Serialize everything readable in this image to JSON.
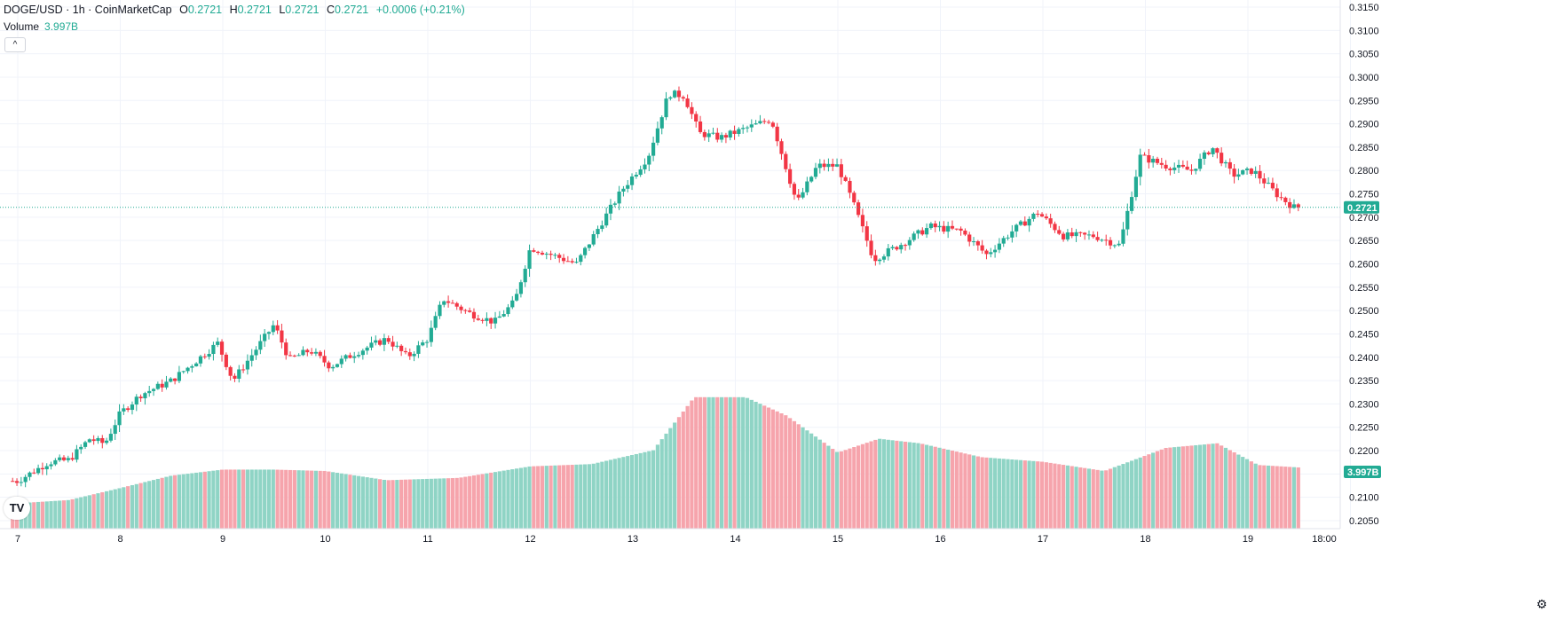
{
  "legend": {
    "symbol": "DOGE/USD · 1h · CoinMarketCap",
    "o_label": "O",
    "o_value": "0.2721",
    "h_label": "H",
    "h_value": "0.2721",
    "l_label": "L",
    "l_value": "0.2721",
    "c_label": "C",
    "c_value": "0.2721",
    "change": "+0.0006 (+0.21%)",
    "volume_label": "Volume",
    "volume_value": "3.997B",
    "collapse_glyph": "^"
  },
  "price_badge": "0.2721",
  "volume_badge": "3.997B",
  "logo_text": "TV",
  "settings_icon": "gear-icon",
  "colors": {
    "up": "#22ab94",
    "down": "#f23645",
    "vol_up": "#8fd4c5",
    "vol_down": "#f6a4ac",
    "grid": "#f0f3fa",
    "text": "#131722"
  },
  "chart_data": {
    "type": "candlestick",
    "interval": "1h",
    "last_price": 0.2721,
    "y_ticks": [
      "0.3150",
      "0.3100",
      "0.3050",
      "0.3000",
      "0.2950",
      "0.2900",
      "0.2850",
      "0.2800",
      "0.2750",
      "0.2700",
      "0.2650",
      "0.2600",
      "0.2550",
      "0.2500",
      "0.2450",
      "0.2400",
      "0.2350",
      "0.2300",
      "0.2250",
      "0.2200",
      "0.2150",
      "0.2100",
      "0.2050"
    ],
    "ylim": [
      0.2035,
      0.3165
    ],
    "x_ticks": [
      "7",
      "8",
      "9",
      "10",
      "11",
      "12",
      "13",
      "14",
      "15",
      "16",
      "17",
      "18",
      "19",
      "18:00"
    ],
    "grid": true,
    "price_path": [
      {
        "day": 7.0,
        "close": 0.2135
      },
      {
        "day": 7.3,
        "close": 0.2175
      },
      {
        "day": 7.5,
        "close": 0.218
      },
      {
        "day": 7.7,
        "close": 0.2225
      },
      {
        "day": 7.85,
        "close": 0.2215
      },
      {
        "day": 8.0,
        "close": 0.228
      },
      {
        "day": 8.2,
        "close": 0.232
      },
      {
        "day": 8.5,
        "close": 0.235
      },
      {
        "day": 8.7,
        "close": 0.2385
      },
      {
        "day": 8.95,
        "close": 0.243
      },
      {
        "day": 9.1,
        "close": 0.235
      },
      {
        "day": 9.3,
        "close": 0.241
      },
      {
        "day": 9.5,
        "close": 0.247
      },
      {
        "day": 9.65,
        "close": 0.2395
      },
      {
        "day": 9.85,
        "close": 0.2415
      },
      {
        "day": 10.05,
        "close": 0.238
      },
      {
        "day": 10.3,
        "close": 0.241
      },
      {
        "day": 10.6,
        "close": 0.244
      },
      {
        "day": 10.8,
        "close": 0.24
      },
      {
        "day": 11.0,
        "close": 0.244
      },
      {
        "day": 11.15,
        "close": 0.2525
      },
      {
        "day": 11.4,
        "close": 0.2495
      },
      {
        "day": 11.65,
        "close": 0.2475
      },
      {
        "day": 11.85,
        "close": 0.252
      },
      {
        "day": 12.0,
        "close": 0.2635
      },
      {
        "day": 12.2,
        "close": 0.262
      },
      {
        "day": 12.45,
        "close": 0.26
      },
      {
        "day": 12.7,
        "close": 0.269
      },
      {
        "day": 12.9,
        "close": 0.276
      },
      {
        "day": 13.15,
        "close": 0.283
      },
      {
        "day": 13.35,
        "close": 0.2965
      },
      {
        "day": 13.5,
        "close": 0.296
      },
      {
        "day": 13.65,
        "close": 0.288
      },
      {
        "day": 13.85,
        "close": 0.287
      },
      {
        "day": 14.1,
        "close": 0.289
      },
      {
        "day": 14.35,
        "close": 0.291
      },
      {
        "day": 14.6,
        "close": 0.273
      },
      {
        "day": 14.8,
        "close": 0.281
      },
      {
        "day": 15.0,
        "close": 0.281
      },
      {
        "day": 15.15,
        "close": 0.273
      },
      {
        "day": 15.35,
        "close": 0.261
      },
      {
        "day": 15.6,
        "close": 0.264
      },
      {
        "day": 15.9,
        "close": 0.268
      },
      {
        "day": 16.2,
        "close": 0.267
      },
      {
        "day": 16.45,
        "close": 0.262
      },
      {
        "day": 16.7,
        "close": 0.267
      },
      {
        "day": 16.95,
        "close": 0.271
      },
      {
        "day": 17.2,
        "close": 0.266
      },
      {
        "day": 17.5,
        "close": 0.266
      },
      {
        "day": 17.75,
        "close": 0.264
      },
      {
        "day": 17.95,
        "close": 0.283
      },
      {
        "day": 18.2,
        "close": 0.281
      },
      {
        "day": 18.45,
        "close": 0.28
      },
      {
        "day": 18.65,
        "close": 0.285
      },
      {
        "day": 18.85,
        "close": 0.279
      },
      {
        "day": 19.05,
        "close": 0.28
      },
      {
        "day": 19.3,
        "close": 0.2745
      },
      {
        "day": 19.45,
        "close": 0.2721
      }
    ],
    "volume_path": [
      {
        "day": 7.0,
        "vol": 0.55
      },
      {
        "day": 7.5,
        "vol": 0.62
      },
      {
        "day": 8.0,
        "vol": 0.88
      },
      {
        "day": 8.5,
        "vol": 1.15
      },
      {
        "day": 9.0,
        "vol": 1.28
      },
      {
        "day": 9.5,
        "vol": 1.28
      },
      {
        "day": 10.0,
        "vol": 1.25
      },
      {
        "day": 10.6,
        "vol": 1.05
      },
      {
        "day": 11.3,
        "vol": 1.1
      },
      {
        "day": 12.0,
        "vol": 1.35
      },
      {
        "day": 12.6,
        "vol": 1.4
      },
      {
        "day": 13.2,
        "vol": 1.7
      },
      {
        "day": 13.6,
        "vol": 2.85
      },
      {
        "day": 14.1,
        "vol": 2.85
      },
      {
        "day": 14.5,
        "vol": 2.45
      },
      {
        "day": 15.0,
        "vol": 1.65
      },
      {
        "day": 15.4,
        "vol": 1.95
      },
      {
        "day": 15.8,
        "vol": 1.85
      },
      {
        "day": 16.4,
        "vol": 1.55
      },
      {
        "day": 17.0,
        "vol": 1.45
      },
      {
        "day": 17.6,
        "vol": 1.25
      },
      {
        "day": 18.2,
        "vol": 1.75
      },
      {
        "day": 18.7,
        "vol": 1.85
      },
      {
        "day": 19.1,
        "vol": 1.38
      },
      {
        "day": 19.55,
        "vol": 1.32
      }
    ]
  }
}
